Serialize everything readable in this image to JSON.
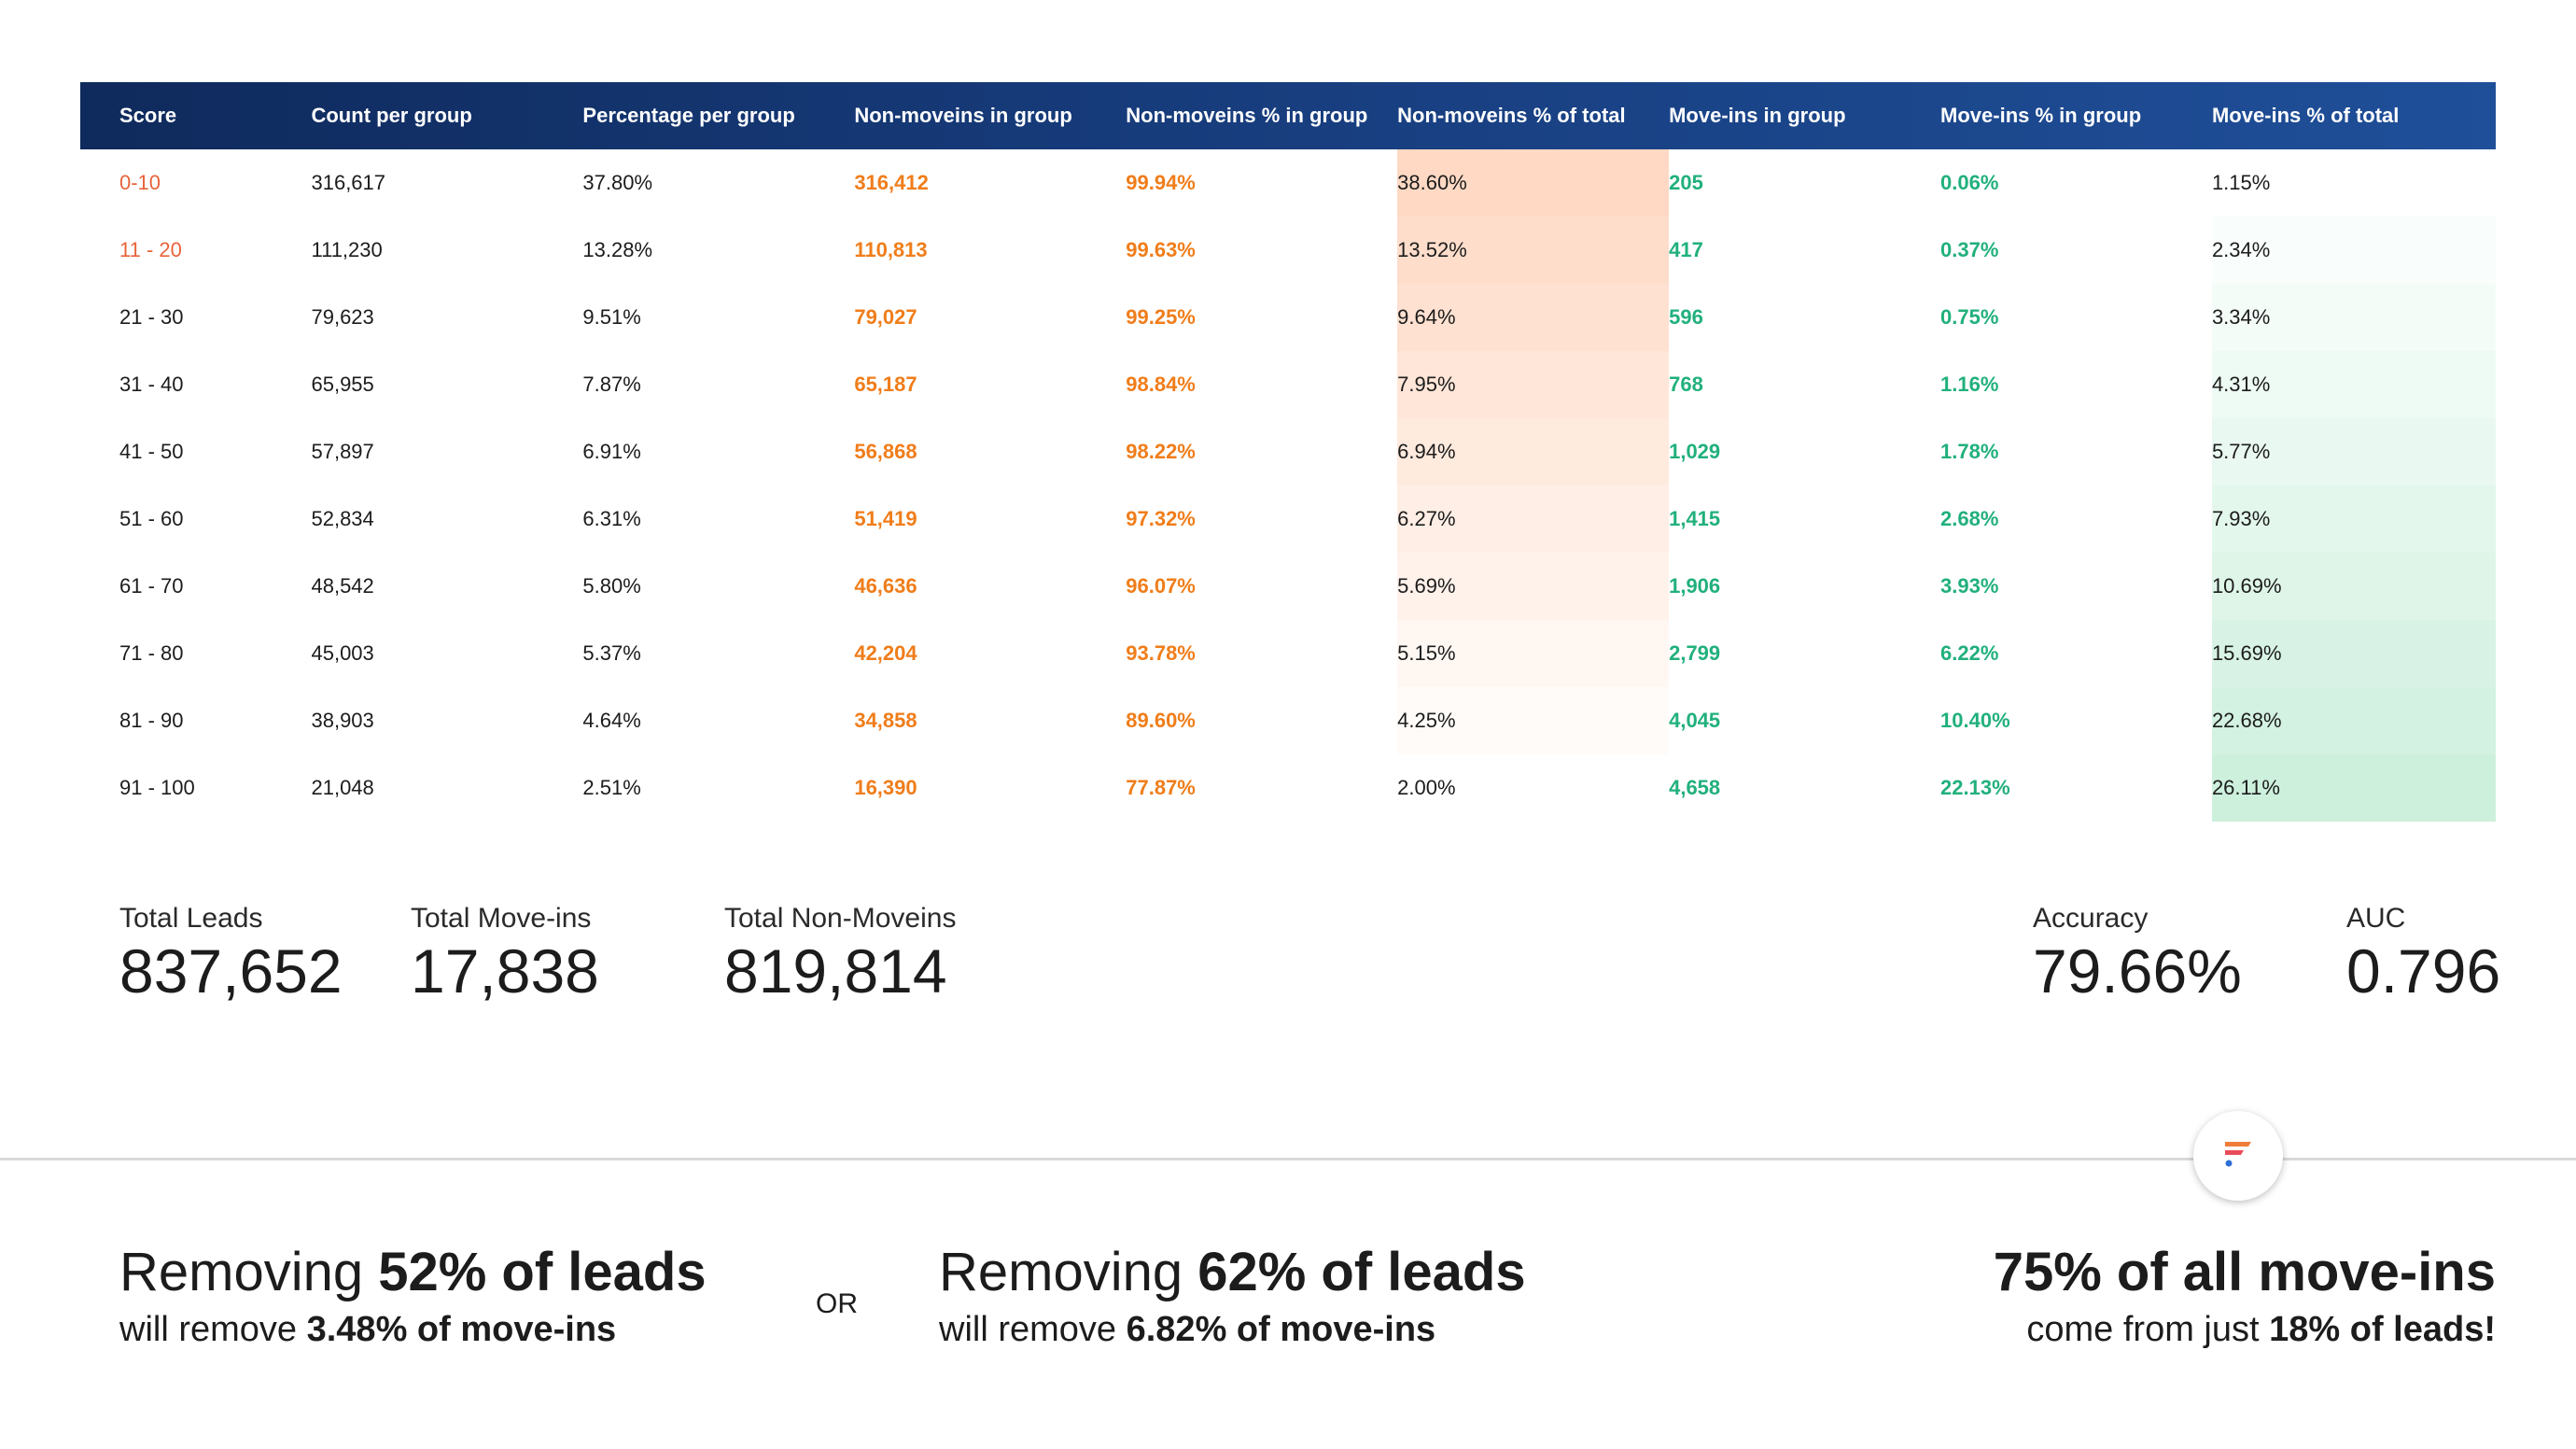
{
  "table": {
    "headers": [
      "Score",
      "Count per group",
      "Percentage per group",
      "Non-moveins in group",
      "Non-moveins % in group",
      "Non-moveins % of total",
      "Move-ins in group",
      "Move-ins % in group",
      "Move-ins % of total"
    ],
    "rows": [
      [
        "0-10",
        "316,617",
        "37.80%",
        "316,412",
        "99.94%",
        "38.60%",
        "205",
        "0.06%",
        "1.15%"
      ],
      [
        "11 - 20",
        "111,230",
        "13.28%",
        "110,813",
        "99.63%",
        "13.52%",
        "417",
        "0.37%",
        "2.34%"
      ],
      [
        "21 - 30",
        "79,623",
        "9.51%",
        "79,027",
        "99.25%",
        "9.64%",
        "596",
        "0.75%",
        "3.34%"
      ],
      [
        "31 - 40",
        "65,955",
        "7.87%",
        "65,187",
        "98.84%",
        "7.95%",
        "768",
        "1.16%",
        "4.31%"
      ],
      [
        "41 - 50",
        "57,897",
        "6.91%",
        "56,868",
        "98.22%",
        "6.94%",
        "1,029",
        "1.78%",
        "5.77%"
      ],
      [
        "51 - 60",
        "52,834",
        "6.31%",
        "51,419",
        "97.32%",
        "6.27%",
        "1,415",
        "2.68%",
        "7.93%"
      ],
      [
        "61 - 70",
        "48,542",
        "5.80%",
        "46,636",
        "96.07%",
        "5.69%",
        "1,906",
        "3.93%",
        "10.69%"
      ],
      [
        "71 - 80",
        "45,003",
        "5.37%",
        "42,204",
        "93.78%",
        "5.15%",
        "2,799",
        "6.22%",
        "15.69%"
      ],
      [
        "81 - 90",
        "38,903",
        "4.64%",
        "34,858",
        "89.60%",
        "4.25%",
        "4,045",
        "10.40%",
        "22.68%"
      ],
      [
        "91 - 100",
        "21,048",
        "2.51%",
        "16,390",
        "77.87%",
        "2.00%",
        "4,658",
        "22.13%",
        "26.11%"
      ]
    ]
  },
  "stats": {
    "total_leads": {
      "label": "Total Leads",
      "value": "837,652"
    },
    "total_moveins": {
      "label": "Total Move-ins",
      "value": "17,838"
    },
    "total_nonmoveins": {
      "label": "Total Non-Moveins",
      "value": "819,814"
    },
    "accuracy": {
      "label": "Accuracy",
      "value": "79.66%"
    },
    "auc": {
      "label": "AUC",
      "value": "0.796"
    }
  },
  "messages": {
    "left": {
      "line1_pre": "Removing ",
      "line1_bold": "52% of leads",
      "line2_pre": "will remove ",
      "line2_bold": "3.48% of move-ins"
    },
    "or": "OR",
    "middle": {
      "line1_pre": "Removing ",
      "line1_bold": "62% of leads",
      "line2_pre": "will remove ",
      "line2_bold": "6.82% of move-ins"
    },
    "right": {
      "line1_bold": "75% of all move-ins",
      "line2_pre": "come from just ",
      "line2_bold": "18% of leads!"
    }
  },
  "colors": {
    "header_start": "#0f2a5c",
    "header_end": "#1f4f99",
    "orange_text": "#f07d1a",
    "green_text": "#21b07c",
    "score_hot": "#e8633a",
    "peach_heat": "#ffd9c4",
    "mint_heat": "#cdf0dd"
  },
  "logo": {
    "icon": "brand-logo-icon"
  }
}
